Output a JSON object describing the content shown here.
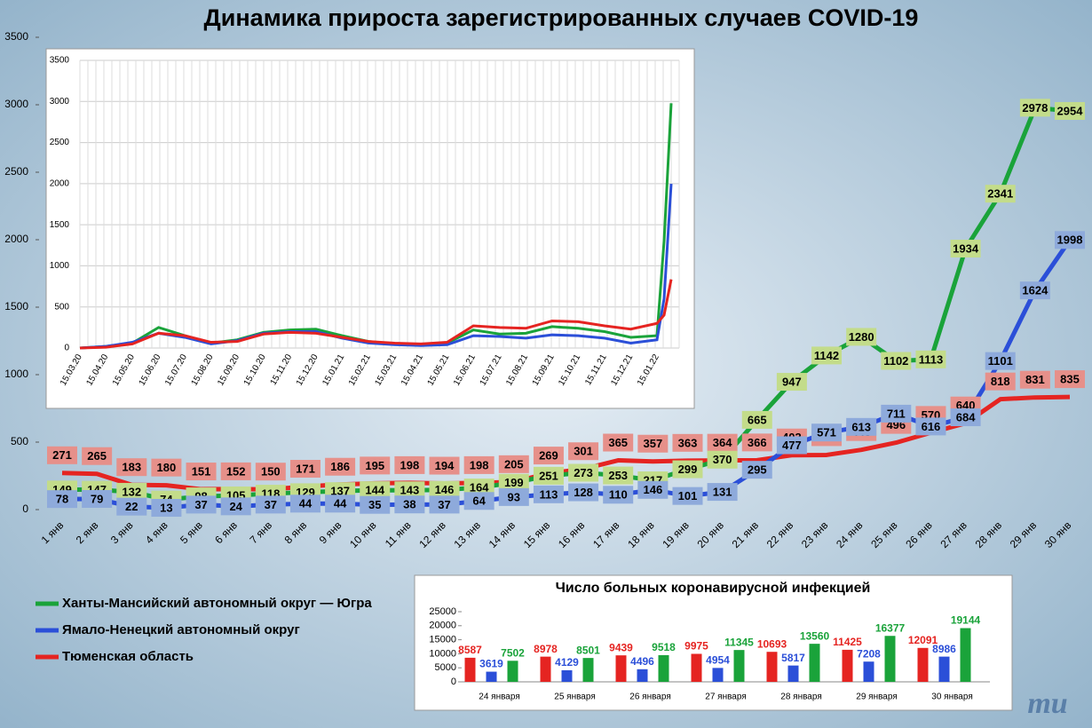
{
  "chart_data": [
    {
      "type": "line",
      "title": "Динамика прироста зарегистрированных случаев COVID-19",
      "categories": [
        "1 янв",
        "2 янв",
        "3 янв",
        "4 янв",
        "5 янв",
        "6 янв",
        "7 янв",
        "8 янв",
        "9 янв",
        "10 янв",
        "11 янв",
        "12 янв",
        "13 янв",
        "14 янв",
        "15 янв",
        "16 янв",
        "17 янв",
        "18 янв",
        "19 янв",
        "20 янв",
        "21 янв",
        "22 янв",
        "23 янв",
        "24 янв",
        "25 янв",
        "26 янв",
        "27 янв",
        "28 янв",
        "29 янв",
        "30 янв"
      ],
      "series": [
        {
          "name": "Ханты-Мансийский автономный округ — Югра",
          "color": "#1aa33a",
          "values": [
            149,
            147,
            132,
            74,
            98,
            105,
            118,
            129,
            137,
            144,
            143,
            146,
            164,
            199,
            251,
            273,
            253,
            217,
            299,
            370,
            665,
            947,
            1142,
            1280,
            1102,
            1113,
            1934,
            2341,
            2978,
            2954
          ]
        },
        {
          "name": "Ямало-Ненецкий автономный округ",
          "color": "#2b4fd8",
          "values": [
            78,
            79,
            22,
            13,
            37,
            24,
            37,
            44,
            44,
            35,
            38,
            37,
            64,
            93,
            113,
            128,
            110,
            146,
            101,
            131,
            295,
            477,
            571,
            613,
            711,
            616,
            684,
            1101,
            1624,
            1998
          ]
        },
        {
          "name": "Тюменская область",
          "color": "#e52421",
          "values": [
            271,
            265,
            183,
            180,
            151,
            152,
            150,
            171,
            186,
            195,
            198,
            194,
            198,
            205,
            269,
            301,
            365,
            357,
            363,
            364,
            366,
            403,
            405,
            443,
            496,
            570,
            640,
            818,
            831,
            835
          ]
        }
      ],
      "ylim": [
        0,
        3500
      ],
      "yticks": [
        0,
        500,
        1000,
        1500,
        2000,
        2500,
        3000,
        3500
      ]
    },
    {
      "type": "line",
      "categories": [
        "15.03.20",
        "15.04.20",
        "15.05.20",
        "15.06.20",
        "15.07.20",
        "15.08.20",
        "15.09.20",
        "15.10.20",
        "15.11.20",
        "15.12.20",
        "15.01.21",
        "15.02.21",
        "15.03.21",
        "15.04.21",
        "15.05.21",
        "15.06.21",
        "15.07.21",
        "15.08.21",
        "15.09.21",
        "15.10.21",
        "15.11.21",
        "15.12.21",
        "15.01.22",
        null,
        null
      ],
      "series": [
        {
          "color": "#1aa33a",
          "values": [
            0,
            20,
            60,
            250,
            150,
            60,
            100,
            190,
            220,
            230,
            150,
            80,
            50,
            40,
            60,
            220,
            170,
            180,
            260,
            240,
            200,
            130,
            150,
            1300,
            2978
          ]
        },
        {
          "color": "#2b4fd8",
          "values": [
            0,
            20,
            70,
            180,
            130,
            50,
            90,
            180,
            200,
            200,
            120,
            60,
            40,
            30,
            40,
            150,
            140,
            120,
            160,
            150,
            120,
            60,
            100,
            600,
            1998
          ]
        },
        {
          "color": "#e52421",
          "values": [
            0,
            10,
            50,
            180,
            150,
            70,
            80,
            170,
            190,
            180,
            130,
            80,
            60,
            50,
            70,
            270,
            250,
            240,
            330,
            320,
            270,
            230,
            300,
            400,
            835
          ]
        }
      ],
      "ylim": [
        0,
        3500
      ],
      "yticks": [
        0,
        500,
        1000,
        1500,
        2000,
        2500,
        3000,
        3500
      ],
      "grid": true
    },
    {
      "type": "bar",
      "title": "Число больных коронавирусной инфекцией",
      "categories": [
        "24 января",
        "25 января",
        "26 января",
        "27 января",
        "28 января",
        "29 января",
        "30 января"
      ],
      "series": [
        {
          "color": "#e52421",
          "values": [
            8587,
            8978,
            9439,
            9975,
            10693,
            11425,
            12091
          ]
        },
        {
          "color": "#2b4fd8",
          "values": [
            3619,
            4129,
            4496,
            4954,
            5817,
            7208,
            8986
          ]
        },
        {
          "color": "#1aa33a",
          "values": [
            7502,
            8501,
            9518,
            11345,
            13560,
            16377,
            19144
          ]
        }
      ],
      "ylim": [
        0,
        25000
      ],
      "yticks": [
        0,
        5000,
        10000,
        15000,
        20000,
        25000
      ]
    }
  ],
  "logo": "mu"
}
